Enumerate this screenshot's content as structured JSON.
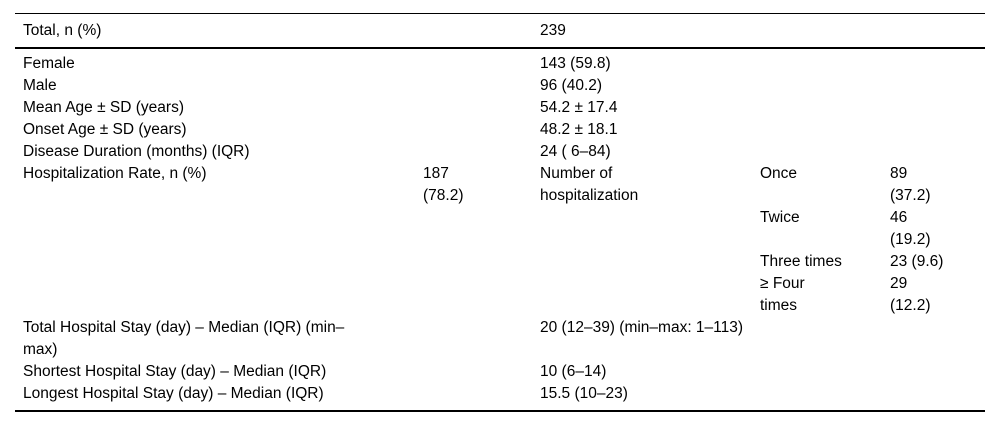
{
  "table": {
    "header": {
      "label": "Total, n (%)",
      "value": "239"
    },
    "demographic_rows": [
      {
        "label": "Female",
        "value": "143 (59.8)"
      },
      {
        "label": "Male",
        "value": "96 (40.2)"
      },
      {
        "label": "Mean Age ± SD (years)",
        "value": "54.2 ± 17.4"
      },
      {
        "label": "Onset Age ± SD (years)",
        "value": "48.2 ± 18.1"
      },
      {
        "label": "Disease Duration (months) (IQR)",
        "value": "24 ( 6–84)"
      }
    ],
    "hospitalization": {
      "label": "Hospitalization Rate, n (%)",
      "rate_value": "187\n(78.2)",
      "subcategory_label": "Number of\nhospitalization",
      "breakdown": [
        {
          "label": "Once",
          "value": "89\n(37.2)"
        },
        {
          "label": "Twice",
          "value": "46\n(19.2)"
        },
        {
          "label": "Three times",
          "value": "23 (9.6)"
        },
        {
          "label": "≥ Four\ntimes",
          "value": "29\n(12.2)"
        }
      ]
    },
    "stay_rows": [
      {
        "label": "Total Hospital Stay (day) – Median (IQR) (min–\nmax)",
        "value": "20 (12–39) (min–max: 1–113)"
      },
      {
        "label": "Shortest Hospital Stay (day) – Median (IQR)",
        "value": "10 (6–14)"
      },
      {
        "label": "Longest Hospital Stay (day) – Median (IQR)",
        "value": "15.5 (10–23)"
      }
    ],
    "colors": {
      "text": "#000000",
      "rule": "#000000",
      "background": "#ffffff"
    }
  }
}
